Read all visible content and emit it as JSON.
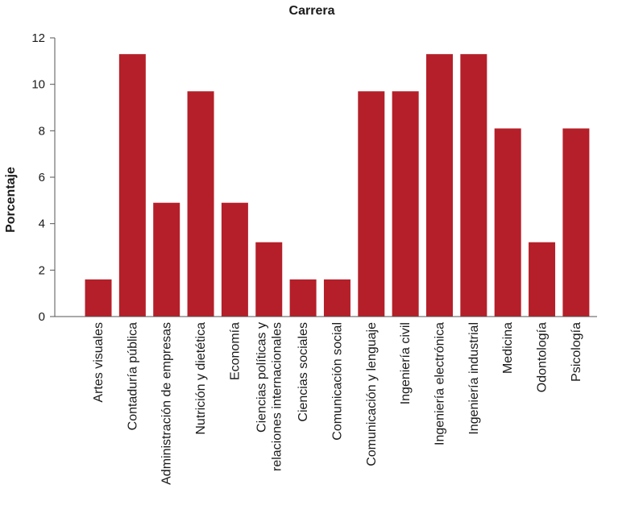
{
  "chart_data": {
    "type": "bar",
    "title": "Carrera",
    "xlabel": "",
    "ylabel": "Porcentaje",
    "ylim": [
      0,
      12
    ],
    "yticks": [
      0,
      2,
      4,
      6,
      8,
      10,
      12
    ],
    "grid": false,
    "legend": "none",
    "bar_color": "#b51f29",
    "categories": [
      [
        "Artes visuales"
      ],
      [
        "Contaduría pública"
      ],
      [
        "Administración de empresas"
      ],
      [
        "Nutrición y dietética"
      ],
      [
        "Economía"
      ],
      [
        "Ciencias políticas y",
        "relaciones internacionales"
      ],
      [
        "Ciencias sociales"
      ],
      [
        "Comunicación social"
      ],
      [
        "Comunicación y lenguaje"
      ],
      [
        "Ingeniería civil"
      ],
      [
        "Ingeniería electrónica"
      ],
      [
        "Ingeniería industrial"
      ],
      [
        "Medicina"
      ],
      [
        "Odontología"
      ],
      [
        "Psicología"
      ]
    ],
    "values": [
      1.6,
      11.3,
      4.9,
      9.7,
      4.9,
      3.2,
      1.6,
      1.6,
      9.7,
      9.7,
      11.3,
      11.3,
      8.1,
      3.2,
      8.1
    ]
  }
}
